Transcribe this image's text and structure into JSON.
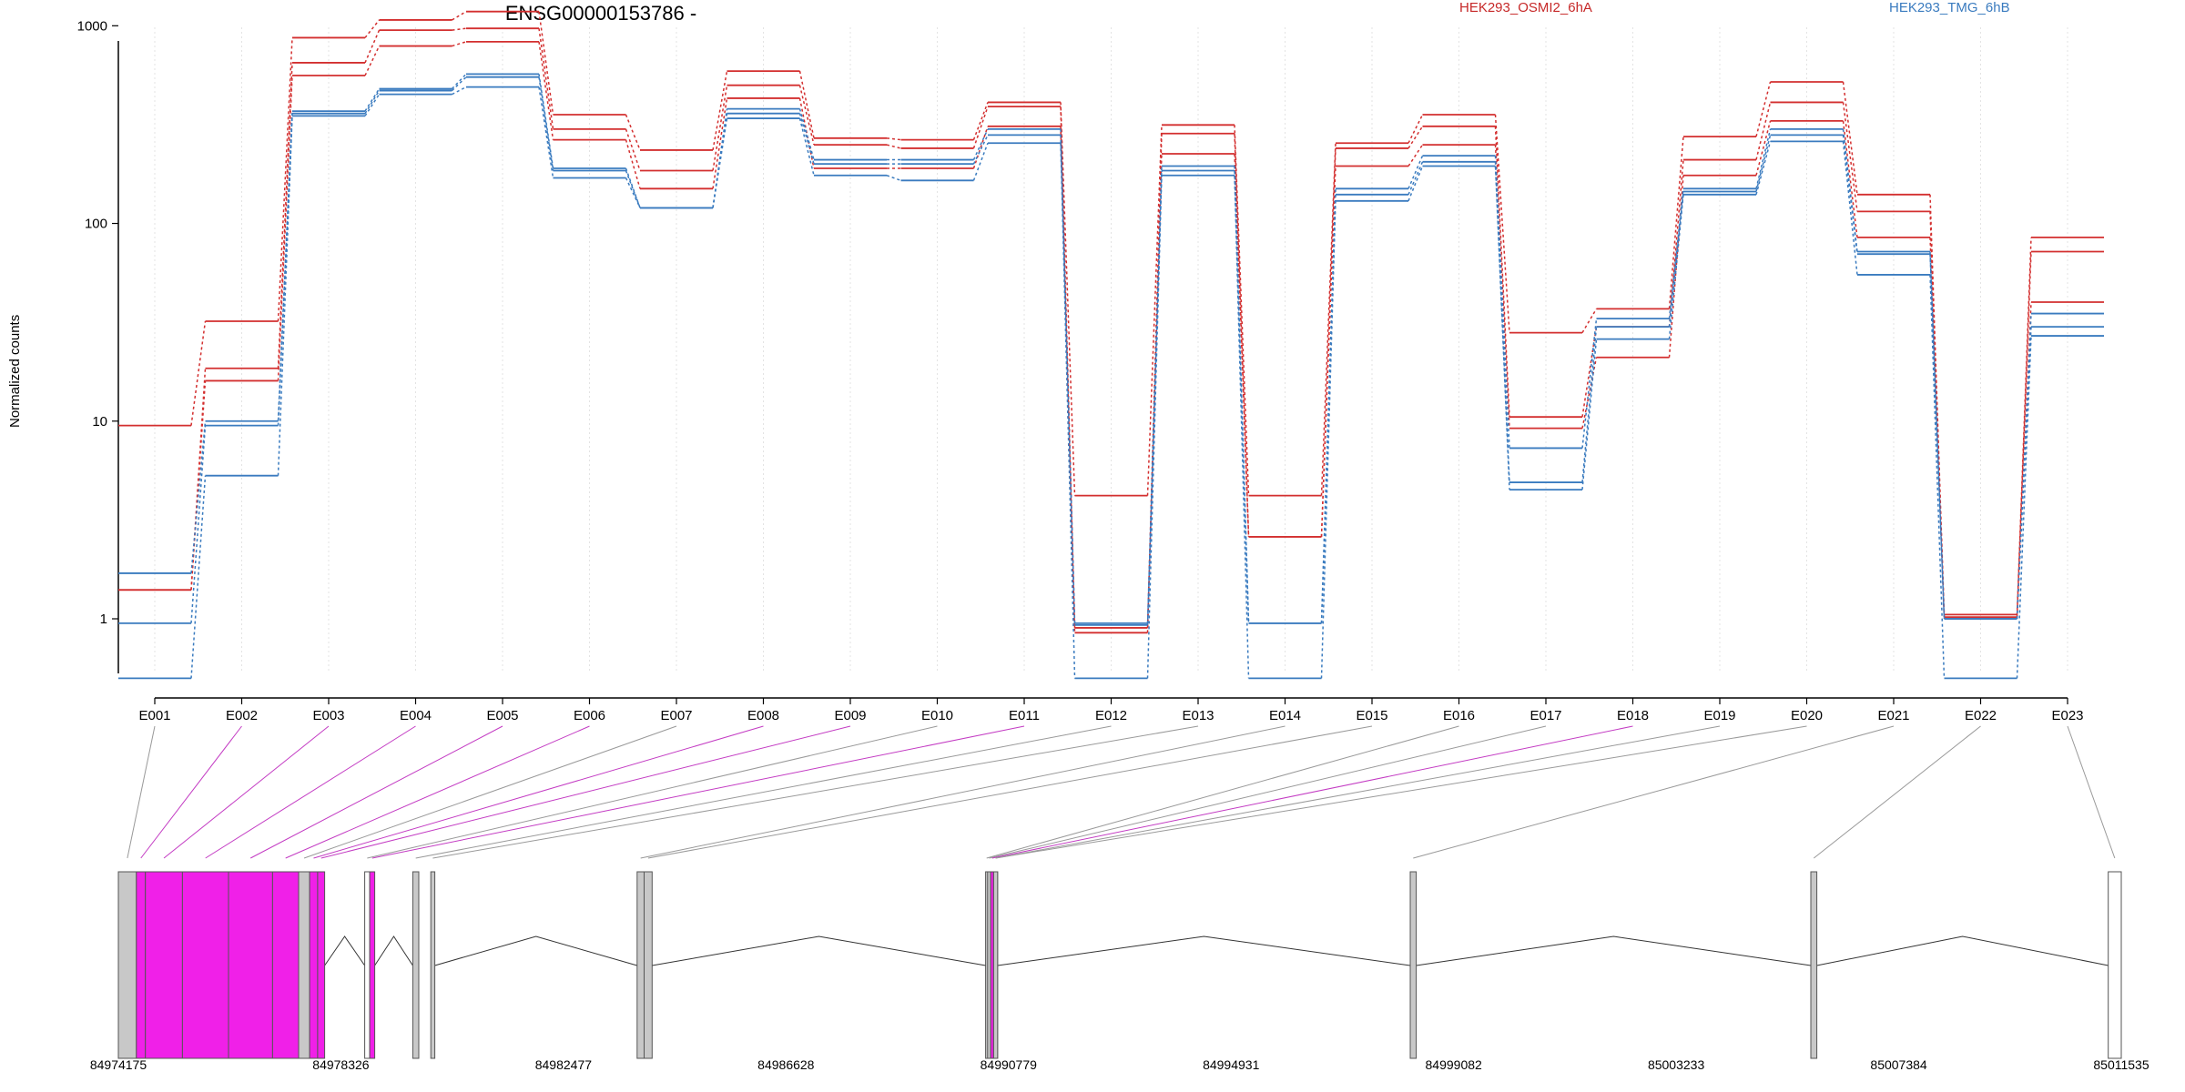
{
  "chart_data": {
    "type": "line",
    "title": "ENSG00000153786 -",
    "ylabel": "Normalized counts",
    "yscale": "log",
    "ylim": [
      0.5,
      1600
    ],
    "yticks": [
      1,
      10,
      100,
      1000
    ],
    "categories": [
      "E001",
      "E002",
      "E003",
      "E004",
      "E005",
      "E006",
      "E007",
      "E008",
      "E009",
      "E010",
      "E011",
      "E012",
      "E013",
      "E014",
      "E015",
      "E016",
      "E017",
      "E018",
      "E019",
      "E020",
      "E021",
      "E022",
      "E023"
    ],
    "legend": [
      "HEK293_OSMI2_6hA",
      "HEK293_TMG_6hB"
    ],
    "legend_placement": "top",
    "series": [
      {
        "name": "HEK293_OSMI2_6hA",
        "color": "#d32f2f",
        "values": [
          9.5,
          32,
          870,
          1070,
          1180,
          355,
          235,
          590,
          270,
          265,
          410,
          4.2,
          315,
          4.2,
          255,
          355,
          28,
          37,
          275,
          520,
          140,
          1.05,
          85
        ]
      },
      {
        "color": "#d32f2f",
        "values": [
          1.4,
          18.5,
          650,
          950,
          970,
          300,
          185,
          500,
          250,
          240,
          390,
          0.9,
          285,
          2.6,
          240,
          310,
          10.5,
          30,
          210,
          410,
          115,
          1.02,
          72
        ]
      },
      {
        "color": "#d32f2f",
        "values": [
          1.4,
          16,
          560,
          790,
          830,
          265,
          150,
          430,
          190,
          190,
          310,
          0.85,
          225,
          2.6,
          195,
          250,
          9.2,
          21,
          175,
          330,
          85,
          1.0,
          40
        ]
      },
      {
        "name": "HEK293_TMG_6hB",
        "color": "#3a7bbf",
        "values": [
          1.7,
          10,
          370,
          480,
          570,
          190,
          120,
          380,
          210,
          210,
          300,
          0.95,
          195,
          0.95,
          150,
          220,
          7.3,
          33,
          150,
          300,
          72,
          1.0,
          35
        ]
      },
      {
        "color": "#3a7bbf",
        "values": [
          0.95,
          9.5,
          360,
          470,
          550,
          185,
          120,
          360,
          200,
          200,
          280,
          0.93,
          185,
          0.95,
          140,
          205,
          4.9,
          30,
          145,
          280,
          70,
          1.0,
          30
        ]
      },
      {
        "color": "#3a7bbf",
        "values": [
          0.5,
          5.3,
          350,
          450,
          490,
          170,
          120,
          340,
          175,
          165,
          255,
          0.5,
          175,
          0.5,
          130,
          195,
          4.5,
          26,
          140,
          260,
          55,
          0.5,
          27
        ]
      }
    ],
    "grid": true,
    "gene_model": {
      "genomic_ticks": [
        "84974175",
        "84978326",
        "84982477",
        "84986628",
        "84990779",
        "84994931",
        "84999082",
        "85003233",
        "85007384",
        "85011535"
      ],
      "exon_colors": {
        "default": "#c8c8c8",
        "highlighted": "#f020e8"
      },
      "highlighted_exons": [
        "E002",
        "E003",
        "E004",
        "E005",
        "E006",
        "E008",
        "E009",
        "E011",
        "E018"
      ]
    }
  }
}
